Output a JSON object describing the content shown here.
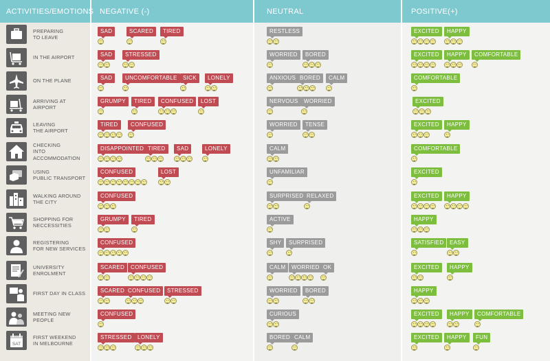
{
  "header": {
    "activities": "ACTIVITIES/EMOTIONS",
    "negative": "NEGATIVE (-)",
    "neutral": "NEUTRAL",
    "positive": "POSITIVE(+)"
  },
  "colors": {
    "negative": "#c04b52",
    "neutral": "#9b9b9b",
    "positive": "#7dbe3f",
    "header": "#7ec8d0"
  },
  "rows": [
    {
      "label": "PREPARING\nTO LEAVE",
      "icon": "suitcase-icon",
      "negative": [
        {
          "text": "SAD",
          "count": 1
        },
        {
          "text": "SCARED",
          "count": 1
        },
        {
          "text": "TIRED",
          "count": 1
        }
      ],
      "neutral": [
        {
          "text": "RESTLESS",
          "count": 2
        }
      ],
      "positive": [
        {
          "text": "EXCITED",
          "count": 4
        },
        {
          "text": "HAPPY",
          "count": 3
        }
      ]
    },
    {
      "label": "IN THE AIRPORT",
      "icon": "luggage-cart-icon",
      "negative": [
        {
          "text": "SAD",
          "count": 2
        },
        {
          "text": "STRESSED",
          "count": 2
        }
      ],
      "neutral": [
        {
          "text": "WORRIED",
          "count": 1
        },
        {
          "text": "BORED",
          "count": 3
        }
      ],
      "positive": [
        {
          "text": "EXCITED",
          "count": 4
        },
        {
          "text": "HAPPY",
          "count": 3
        },
        {
          "text": "COMFORTABLE",
          "count": 1
        }
      ]
    },
    {
      "label": "ON THE PLANE",
      "icon": "airplane-icon",
      "negative": [
        {
          "text": "SAD",
          "count": 1
        },
        {
          "text": "UNCOMFORTABLE",
          "count": 1
        },
        {
          "text": "SICK",
          "count": 1
        },
        {
          "text": "LONELY",
          "count": 2
        }
      ],
      "neutral": [
        {
          "text": "ANXIOUS",
          "count": 1
        },
        {
          "text": "BORED",
          "count": 3
        },
        {
          "text": "CALM",
          "count": 1
        }
      ],
      "positive": [
        {
          "text": "COMFORTABLE",
          "count": 1
        }
      ]
    },
    {
      "label": "ARRIVING AT\nAIRPORT",
      "icon": "arrival-icon",
      "negative": [
        {
          "text": "GRUMPY",
          "count": 1
        },
        {
          "text": "TIRED",
          "count": 1
        },
        {
          "text": "CONFUSED",
          "count": 3
        },
        {
          "text": "LOST",
          "count": 1
        }
      ],
      "neutral": [
        {
          "text": "NERVOUS",
          "count": 1
        },
        {
          "text": "WORRIED",
          "count": 1
        }
      ],
      "positive": [
        {
          "text": "EXCITED",
          "count": 3
        }
      ]
    },
    {
      "label": "LEAVING\nTHE AIRPORT",
      "icon": "taxi-icon",
      "negative": [
        {
          "text": "TIRED",
          "count": 4
        },
        {
          "text": "CONFUSED",
          "count": 1
        }
      ],
      "neutral": [
        {
          "text": "WORRIED",
          "count": 1
        },
        {
          "text": "TENSE",
          "count": 2
        }
      ],
      "positive": [
        {
          "text": "EXCITED",
          "count": 3
        },
        {
          "text": "HAPPY",
          "count": 1
        }
      ]
    },
    {
      "label": "CHECKING\nINTO\nACCOMMODATION",
      "icon": "house-icon",
      "negative": [
        {
          "text": "DISAPPOINTED",
          "count": 4
        },
        {
          "text": "TIRED",
          "count": 3
        },
        {
          "text": "SAD",
          "count": 3
        },
        {
          "text": "LONELY",
          "count": 1
        }
      ],
      "neutral": [
        {
          "text": "CALM",
          "count": 2
        }
      ],
      "positive": [
        {
          "text": "COMFORTABLE",
          "count": 1
        }
      ]
    },
    {
      "label": "USING\nPUBLIC TRANSPORT",
      "icon": "ticket-icon",
      "negative": [
        {
          "text": "CONFUSED",
          "count": 8
        },
        {
          "text": "LOST",
          "count": 2
        }
      ],
      "neutral": [
        {
          "text": "UNFAMILIAR",
          "count": 1
        }
      ],
      "positive": [
        {
          "text": "EXCITED",
          "count": 1
        }
      ]
    },
    {
      "label": "WALKING AROUND\nTHE CITY",
      "icon": "city-icon",
      "negative": [
        {
          "text": "CONFUSED",
          "count": 3
        }
      ],
      "neutral": [
        {
          "text": "SURPRISED",
          "count": 2
        },
        {
          "text": "RELAXED",
          "count": 1
        }
      ],
      "positive": [
        {
          "text": "EXCITED",
          "count": 4
        },
        {
          "text": "HAPPY",
          "count": 4
        }
      ]
    },
    {
      "label": "SHOPPING FOR\nNECCESSITIES",
      "icon": "shopping-cart-icon",
      "negative": [
        {
          "text": "GRUMPY",
          "count": 2
        },
        {
          "text": "TIRED",
          "count": 1
        }
      ],
      "neutral": [
        {
          "text": "ACTIVE",
          "count": 1
        }
      ],
      "positive": [
        {
          "text": "HAPPY",
          "count": 3
        }
      ]
    },
    {
      "label": "REGISTERING\nFOR NEW SERVICES",
      "icon": "person-icon",
      "negative": [
        {
          "text": "CONFUSED",
          "count": 5
        }
      ],
      "neutral": [
        {
          "text": "SHY",
          "count": 1
        },
        {
          "text": "SURPRISED",
          "count": 1
        }
      ],
      "positive": [
        {
          "text": "SATISFIED",
          "count": 1
        },
        {
          "text": "EASY",
          "count": 2
        }
      ]
    },
    {
      "label": "UNIVERSITY\nENROLMENT",
      "icon": "enrolment-form-icon",
      "negative": [
        {
          "text": "SCARED",
          "count": 2
        },
        {
          "text": "CONFUSED",
          "count": 4
        }
      ],
      "neutral": [
        {
          "text": "CALM",
          "count": 1
        },
        {
          "text": "WORRIED",
          "count": 4
        },
        {
          "text": "OK",
          "count": 1
        }
      ],
      "positive": [
        {
          "text": "EXCITED",
          "count": 2
        },
        {
          "text": "HAPPY",
          "count": 1
        }
      ]
    },
    {
      "label": "FIRST DAY IN CLASS",
      "icon": "teacher-icon",
      "negative": [
        {
          "text": "SCARED",
          "count": 2
        },
        {
          "text": "CONFUSED",
          "count": 3
        },
        {
          "text": "STRESSED",
          "count": 2
        }
      ],
      "neutral": [
        {
          "text": "WORRIED",
          "count": 2
        },
        {
          "text": "BORED",
          "count": 2
        }
      ],
      "positive": [
        {
          "text": "HAPPY",
          "count": 3
        }
      ]
    },
    {
      "label": "MEETING NEW\nPEOPLE",
      "icon": "people-icon",
      "negative": [
        {
          "text": "CONFUSED",
          "count": 1
        }
      ],
      "neutral": [
        {
          "text": "CURIOUS",
          "count": 2
        }
      ],
      "positive": [
        {
          "text": "EXCITED",
          "count": 4
        },
        {
          "text": "HAPPY",
          "count": 2
        },
        {
          "text": "COMFORTABLE",
          "count": 1
        }
      ]
    },
    {
      "label": "FIRST WEEKEND\nIN MELBOURNE",
      "icon": "calendar-icon",
      "calendar_text": "SAT",
      "negative": [
        {
          "text": "STRESSED",
          "count": 3
        },
        {
          "text": "LONELY",
          "count": 3
        }
      ],
      "neutral": [
        {
          "text": "BORED",
          "count": 1
        },
        {
          "text": "CALM",
          "count": 1
        }
      ],
      "positive": [
        {
          "text": "EXCITED",
          "count": 1
        },
        {
          "text": "HAPPY",
          "count": 1
        },
        {
          "text": "FUN",
          "count": 1
        }
      ]
    }
  ]
}
